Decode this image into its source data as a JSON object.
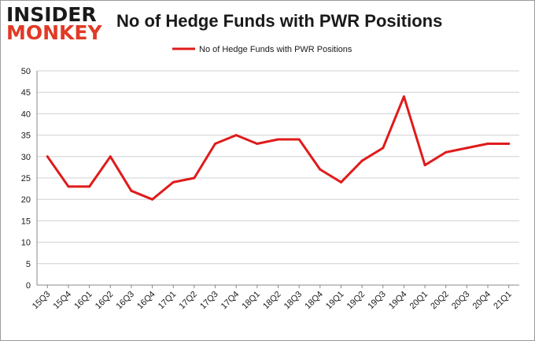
{
  "logo": {
    "line1": "INSIDER",
    "line2": "MONKEY"
  },
  "colors": {
    "series": "#e01b1b",
    "grid": "#d0d0d0",
    "logo_accent": "#e03a26"
  },
  "chart_data": {
    "type": "line",
    "title": "No of Hedge Funds with PWR Positions",
    "xlabel": "",
    "ylabel": "",
    "ylim": [
      0,
      50
    ],
    "yticks": [
      0,
      5,
      10,
      15,
      20,
      25,
      30,
      35,
      40,
      45,
      50
    ],
    "grid": "horizontal",
    "legend": "top-center",
    "categories": [
      "15Q3",
      "15Q4",
      "16Q1",
      "16Q2",
      "16Q3",
      "16Q4",
      "17Q1",
      "17Q2",
      "17Q3",
      "17Q4",
      "18Q1",
      "18Q2",
      "18Q3",
      "18Q4",
      "19Q1",
      "19Q2",
      "19Q3",
      "19Q4",
      "20Q1",
      "20Q2",
      "20Q3",
      "20Q4",
      "21Q1"
    ],
    "series": [
      {
        "name": "No of Hedge Funds with PWR Positions",
        "values": [
          30,
          23,
          23,
          30,
          22,
          20,
          24,
          25,
          33,
          35,
          33,
          34,
          34,
          27,
          24,
          29,
          32,
          44,
          28,
          31,
          32,
          33,
          33
        ]
      }
    ]
  }
}
